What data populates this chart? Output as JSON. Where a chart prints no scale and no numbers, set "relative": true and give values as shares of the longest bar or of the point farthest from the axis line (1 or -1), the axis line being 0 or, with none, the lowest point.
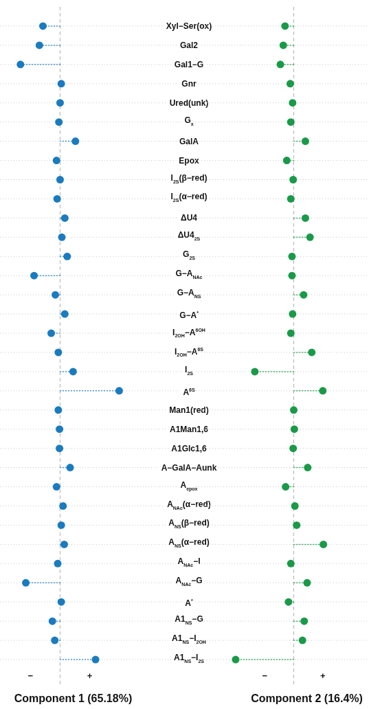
{
  "chart_data": [
    {
      "type": "lollipop",
      "orientation": "horizontal",
      "relative": true,
      "xlabel": "Component 1 (65.18%)",
      "grid": "y",
      "marker": "circle",
      "line_style": "dotted",
      "tick_labels": "y",
      "annotations": [
        "−",
        "+"
      ],
      "ref_lines": [
        {
          "axis": "x",
          "value": 0,
          "color": "#b0b0b0",
          "line_style": "dashed"
        }
      ],
      "categories": [
        "Xyl−Ser(ox)",
        "Gal2",
        "Gal1−G",
        "Gnr",
        "Ured(unk)",
        "G$_{x}$",
        "GalA",
        "Epox",
        "I$_{2S}$(β−red)",
        "I$_{2S}$(α−red)",
        "ΔU4",
        "ΔU4$_{2S}$",
        "G$_{2S}$",
        "G−A$_{NAc}$",
        "G−A$_{NS}$",
        "G−A$^{*}$",
        "I$_{2OH}$−A$^{6OH}$",
        "I$_{2OH}$−A$^{6S}$",
        "I$_{2S}$",
        "A$^{6S}$",
        "Man1(red)",
        "A1Man1,6",
        "A1Glc1,6",
        "A−GalA−Aunk",
        "A$_{epox}$",
        "A$_{NAc}$(α−red)",
        "A$_{NS}$(β−red)",
        "A$_{NS}$(α−red)",
        "A$_{NAc}$−I",
        "A$_{NAc}$−G",
        "A$^{*}$",
        "A1$_{NS}$−G",
        "A1$_{NS}$−I$_{2OH}$",
        "A1$_{NS}$−I$_{2S}$"
      ],
      "series": [
        {
          "color": "#1a7bbf",
          "values": [
            -0.29,
            -0.35,
            -0.67,
            0.02,
            0,
            -0.02,
            0.26,
            -0.06,
            0,
            -0.05,
            0.08,
            0.03,
            0.12,
            -0.44,
            -0.08,
            0.08,
            -0.15,
            -0.03,
            0.22,
            1,
            -0.03,
            -0.01,
            -0.01,
            0.17,
            -0.06,
            0.05,
            0.02,
            0.07,
            -0.04,
            -0.58,
            0.02,
            -0.13,
            -0.09,
            0.6
          ]
        }
      ]
    },
    {
      "type": "lollipop",
      "orientation": "horizontal",
      "relative": true,
      "xlabel": "Component 2 (16.4%)",
      "grid": "y",
      "marker": "circle",
      "line_style": "dotted",
      "tick_labels": false,
      "annotations": [
        "−",
        "+"
      ],
      "ref_lines": [
        {
          "axis": "x",
          "value": 0,
          "color": "#b0b0b0",
          "line_style": "dashed"
        }
      ],
      "categories": [
        "Xyl−Ser(ox)",
        "Gal2",
        "Gal1−G",
        "Gnr",
        "Ured(unk)",
        "G$_{x}$",
        "GalA",
        "Epox",
        "I$_{2S}$(β−red)",
        "I$_{2S}$(α−red)",
        "ΔU4",
        "ΔU4$_{2S}$",
        "G$_{2S}$",
        "G−A$_{NAc}$",
        "G−A$_{NS}$",
        "G−A$^{*}$",
        "I$_{2OH}$−A$^{6OH}$",
        "I$_{2OH}$−A$^{6S}$",
        "I$_{2S}$",
        "A$^{6S}$",
        "Man1(red)",
        "A1Man1,6",
        "A1Glc1,6",
        "A−GalA−Aunk",
        "A$_{epox}$",
        "A$_{NAc}$(α−red)",
        "A$_{NS}$(β−red)",
        "A$_{NS}$(α−red)",
        "A$_{NAc}$−I",
        "A$_{NAc}$−G",
        "A$^{*}$",
        "A1$_{NS}$−G",
        "A1$_{NS}$−I$_{2OH}$",
        "A1$_{NS}$−I$_{2S}$"
      ],
      "series": [
        {
          "color": "#1a9a48",
          "values": [
            -0.15,
            -0.18,
            -0.23,
            -0.06,
            -0.02,
            -0.05,
            0.2,
            -0.12,
            -0.01,
            -0.05,
            0.2,
            0.28,
            -0.03,
            -0.03,
            0.17,
            -0.02,
            -0.05,
            0.31,
            -0.67,
            0.5,
            0,
            0.01,
            -0.01,
            0.24,
            -0.14,
            0.02,
            0.05,
            0.51,
            -0.05,
            0.23,
            -0.09,
            0.18,
            0.15,
            -1
          ]
        }
      ]
    }
  ]
}
